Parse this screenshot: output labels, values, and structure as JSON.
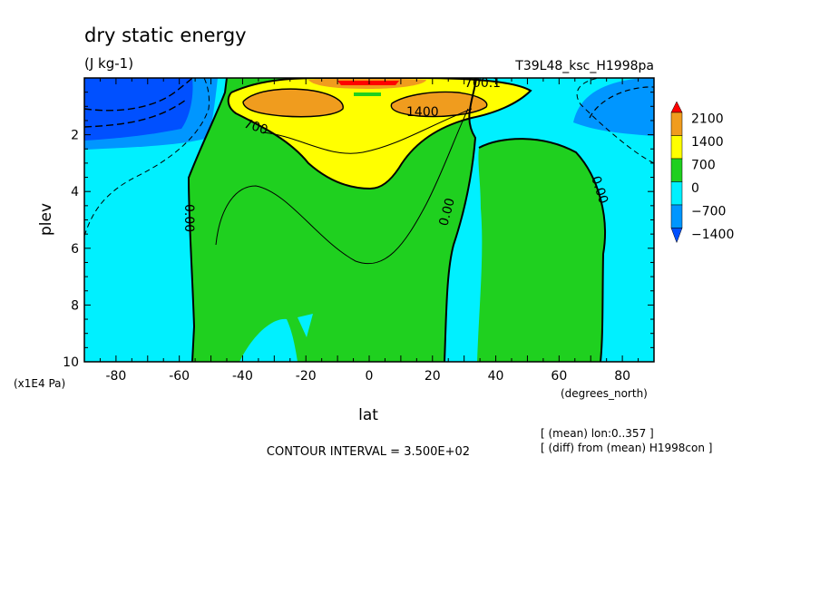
{
  "chart_data": {
    "type": "contour",
    "title": "dry static energy",
    "units": "(J kg-1)",
    "run_name": "T39L48_ksc_H1998pa",
    "xlabel": "lat",
    "x_unit": "(degrees_north)",
    "ylabel": "plev",
    "y_unit": "(x1E4 Pa)",
    "xlim": [
      -90,
      90
    ],
    "ylim": [
      10,
      0
    ],
    "x_ticks": [
      "-80",
      "-60",
      "-40",
      "-20",
      "0",
      "20",
      "40",
      "60",
      "80"
    ],
    "y_ticks": [
      "2",
      "4",
      "6",
      "8",
      "10"
    ],
    "contour_interval_text": "CONTOUR INTERVAL = 3.500E+02",
    "notes": [
      "[ (mean) lon:0..357 ]",
      "[ (diff) from (mean) H1998con ]"
    ],
    "color_levels": [
      -1400,
      -700,
      0,
      700,
      1400,
      2100
    ],
    "colorbar": {
      "labels": [
        "2100",
        "1400",
        "700",
        "0",
        "−700",
        "−1400"
      ],
      "colors": [
        "#ff0000",
        "#f09c1e",
        "#ffff00",
        "#1fd01f",
        "#00f0ff",
        "#0096ff",
        "#0050ff"
      ]
    },
    "contour_labels": [
      "700.1",
      "1400",
      "700",
      "0.00",
      "0.00",
      "0.00",
      "0.00"
    ],
    "fill_colors": {
      "dark_blue": "#0050ff",
      "blue": "#0096ff",
      "cyan": "#00f0ff",
      "green": "#1fd01f",
      "yellow": "#ffff00",
      "orange": "#f09c1e",
      "red": "#ff0000"
    }
  }
}
